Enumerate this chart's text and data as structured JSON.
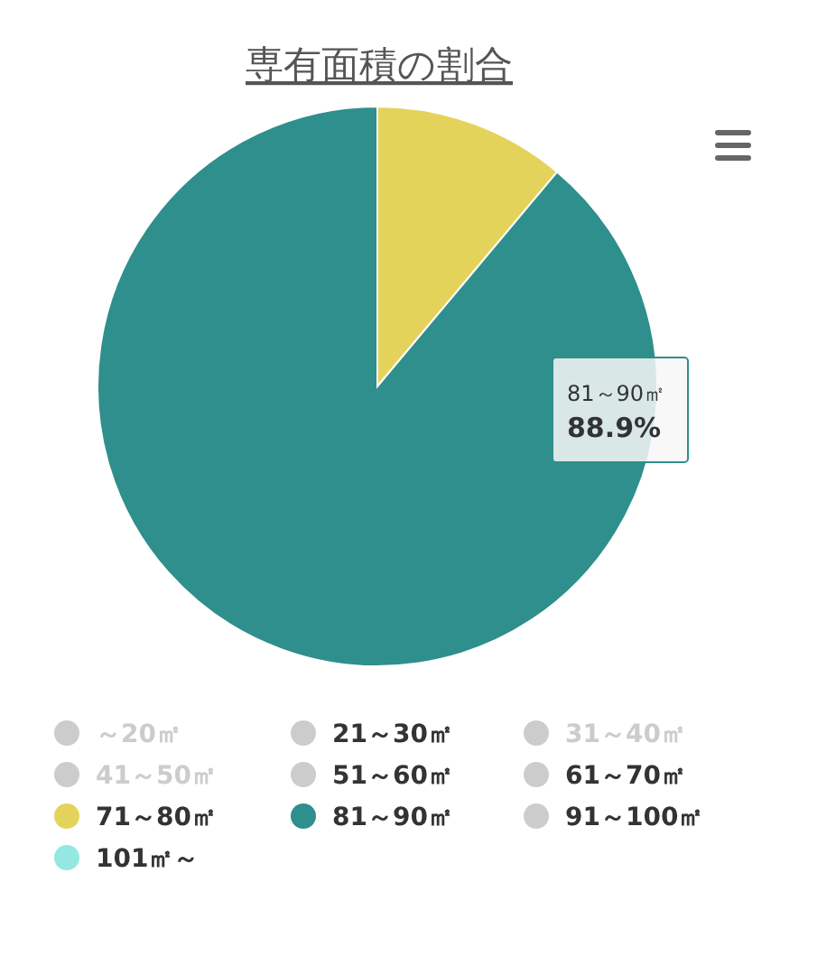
{
  "chart_data": {
    "type": "pie",
    "title": "専有面積の割合",
    "categories": [
      "～20㎡",
      "21～30㎡",
      "31～40㎡",
      "41～50㎡",
      "51～60㎡",
      "61～70㎡",
      "71～80㎡",
      "81～90㎡",
      "91～100㎡",
      "101㎡～"
    ],
    "values": [
      null,
      0,
      null,
      null,
      0,
      0,
      11.1,
      88.9,
      0,
      0
    ],
    "colors": [
      "#cccccc",
      "#cccccc",
      "#cccccc",
      "#cccccc",
      "#cccccc",
      "#cccccc",
      "#e4d35a",
      "#2e8f8c",
      "#cccccc",
      "#94e7e2"
    ],
    "annotations": [
      "81～90㎡",
      "88.9%"
    ],
    "legend": "bottom"
  }
}
